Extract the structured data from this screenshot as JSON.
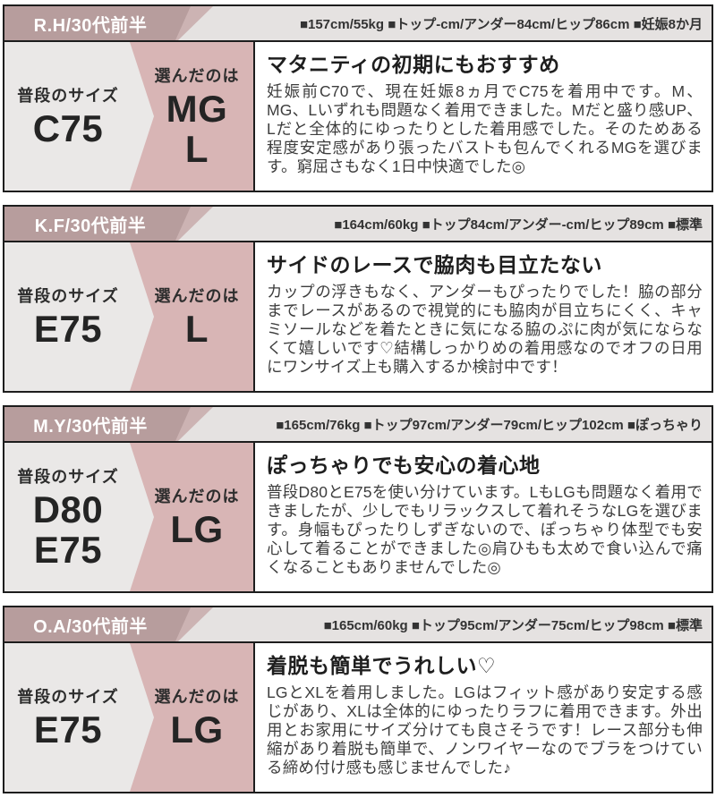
{
  "colors": {
    "header_ribbon_dark": "#b79d9d",
    "header_ribbon_light": "#ccb3b3",
    "header_background": "#e5e2e1",
    "panel_gray": "#eae8e7",
    "panel_pink": "#d8b5b5",
    "border": "#1d1d1d"
  },
  "reviews": [
    {
      "reviewer": "R.H/30代前半",
      "stats": "■157cm/55kg ■トップ-cm/アンダー84cm/ヒップ86cm ■妊娠8か月",
      "usual_label": "普段のサイズ",
      "usual_sizes": [
        "C75"
      ],
      "chosen_label": "選んだのは",
      "chosen_sizes": [
        "MG",
        "L"
      ],
      "title": "マタニティの初期にもおすすめ",
      "body": "妊娠前C70で、現在妊娠8ヵ月でC75を着用中です。M、MG、Lいずれも問題なく着用できました。Mだと盛り感UP、Lだと全体的にゆったりとした着用感でした。そのためある程度安定感があり張ったバストも包んでくれるMGを選びます。窮屈さもなく1日中快適でした◎"
    },
    {
      "reviewer": "K.F/30代前半",
      "stats": "■164cm/60kg ■トップ84cm/アンダー-cm/ヒップ89cm ■標準",
      "usual_label": "普段のサイズ",
      "usual_sizes": [
        "E75"
      ],
      "chosen_label": "選んだのは",
      "chosen_sizes": [
        "L"
      ],
      "title": "サイドのレースで脇肉も目立たない",
      "body": "カップの浮きもなく、アンダーもぴったりでした！脇の部分までレースがあるので視覚的にも脇肉が目立ちにくく、キャミソールなどを着たときに気になる脇のぷに肉が気にならなくて嬉しいです♡結構しっかりめの着用感なのでオフの日用にワンサイズ上も購入するか検討中です！"
    },
    {
      "reviewer": "M.Y/30代前半",
      "stats": "■165cm/76kg ■トップ97cm/アンダー79cm/ヒップ102cm ■ぽっちゃり",
      "usual_label": "普段のサイズ",
      "usual_sizes": [
        "D80",
        "E75"
      ],
      "chosen_label": "選んだのは",
      "chosen_sizes": [
        "LG"
      ],
      "title": "ぽっちゃりでも安心の着心地",
      "body": "普段D80とE75を使い分けています。LもLGも問題なく着用できましたが、少しでもリラックスして着れそうなLGを選びます。身幅もぴったりしずぎないので、ぽっちゃり体型でも安心して着ることができました◎肩ひもも太めで食い込んで痛くなることもありませんでした◎"
    },
    {
      "reviewer": "O.A/30代前半",
      "stats": "■165cm/60kg ■トップ95cm/アンダー75cm/ヒップ98cm ■標準",
      "usual_label": "普段のサイズ",
      "usual_sizes": [
        "E75"
      ],
      "chosen_label": "選んだのは",
      "chosen_sizes": [
        "LG"
      ],
      "title": "着脱も簡単でうれしい♡",
      "body": "LGとXLを着用しました。LGはフィット感があり安定する感じがあり、XLは全体的にゆったりラフに着用できます。外出用とお家用にサイズ分けても良さそうです！レース部分も伸縮があり着脱も簡単で、ノンワイヤーなのでブラをつけている締め付け感も感じませんでした♪"
    }
  ]
}
